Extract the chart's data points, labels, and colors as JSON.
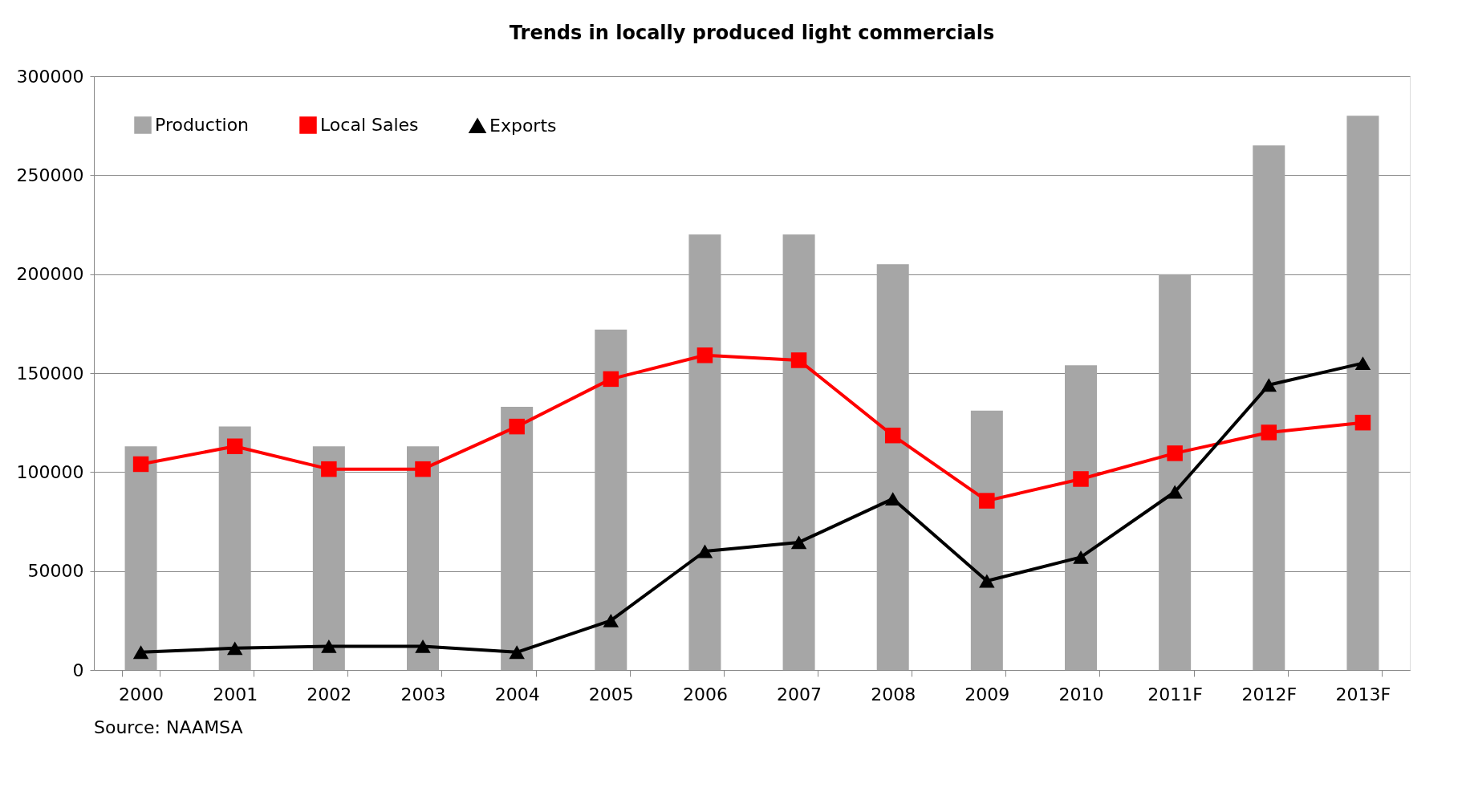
{
  "chart_data": {
    "type": "bar",
    "title": "Trends in locally produced light commercials",
    "categories": [
      "2000",
      "2001",
      "2002",
      "2003",
      "2004",
      "2005",
      "2006",
      "2007",
      "2008",
      "2009",
      "2010",
      "2011F",
      "2012F",
      "2013F"
    ],
    "series": [
      {
        "name": "Production",
        "color": "#a6a6a6",
        "values": [
          113000,
          123000,
          113000,
          113000,
          133000,
          172000,
          220000,
          220000,
          205000,
          131000,
          154000,
          200000,
          265000,
          280000
        ]
      },
      {
        "name": "Local Sales",
        "type": "line",
        "color": "#ff0000",
        "marker": "square",
        "values": [
          104000,
          113000,
          101500,
          101500,
          123000,
          147000,
          159000,
          156500,
          118500,
          85500,
          96500,
          109500,
          120000,
          125000
        ]
      },
      {
        "name": "Exports",
        "type": "line",
        "color": "#000000",
        "marker": "triangle",
        "values": [
          9000,
          11000,
          12000,
          12000,
          9000,
          25000,
          60000,
          64500,
          86500,
          45000,
          57000,
          90000,
          144000,
          155000
        ]
      }
    ],
    "ylim": [
      0,
      300000
    ],
    "yticks": [
      0,
      50000,
      100000,
      150000,
      200000,
      250000,
      300000
    ],
    "grid": "y",
    "legend": "top left",
    "line_style": "solid",
    "annotations": [
      "Source: NAAMSA"
    ]
  }
}
